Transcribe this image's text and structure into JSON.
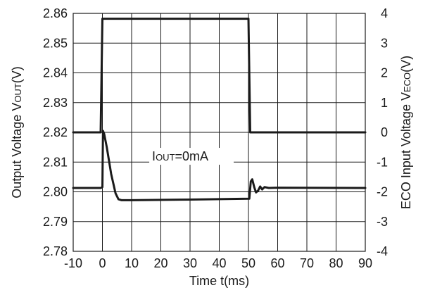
{
  "chart_data": {
    "type": "line",
    "xlabel": "Time t(ms)",
    "ylabel_left": {
      "main": "Output Voltage V",
      "sub": "OUT",
      "unit": "(V)"
    },
    "ylabel_right": {
      "main": "ECO Input Voltage V",
      "sub": "ECO",
      "unit": "(V)"
    },
    "xlim": [
      -10,
      90
    ],
    "ylim_left": [
      2.78,
      2.86
    ],
    "ylim_right": [
      -4,
      4
    ],
    "x_ticks": [
      "-10",
      "0",
      "10",
      "20",
      "30",
      "40",
      "50",
      "60",
      "70",
      "80",
      "90"
    ],
    "y_left_ticks": [
      "2.78",
      "2.79",
      "2.80",
      "2.81",
      "2.82",
      "2.83",
      "2.84",
      "2.85",
      "2.86"
    ],
    "y_right_ticks": [
      "-4",
      "-3",
      "-2",
      "-1",
      "0",
      "1",
      "2",
      "3",
      "4"
    ],
    "grid": true,
    "annotation": {
      "main": "I",
      "sub": "OUT",
      "rest": "=0mA",
      "x": 17,
      "y": 2.811
    },
    "series": [
      {
        "axis": "right",
        "x": [
          -10,
          -0.6,
          0,
          0.6,
          49.4,
          50,
          50.6,
          90
        ],
        "y": [
          0,
          0,
          3.82,
          3.82,
          3.82,
          3.82,
          0,
          0
        ]
      },
      {
        "axis": "left",
        "x": [
          -10,
          -0.5,
          0,
          0.2,
          0.6,
          1.5,
          3,
          4.5,
          5.5,
          6.5,
          10,
          30,
          50,
          50.3,
          50.8,
          51.3,
          52,
          52.6,
          53.3,
          54,
          54.7,
          55.5,
          57,
          60,
          90
        ],
        "y": [
          2.8013,
          2.8013,
          2.8016,
          2.8205,
          2.8195,
          2.815,
          2.806,
          2.7995,
          2.7975,
          2.7972,
          2.7972,
          2.7974,
          2.7977,
          2.7977,
          2.8035,
          2.8042,
          2.8015,
          2.7998,
          2.8004,
          2.8018,
          2.8008,
          2.8016,
          2.8013,
          2.8014,
          2.8013
        ]
      }
    ]
  }
}
